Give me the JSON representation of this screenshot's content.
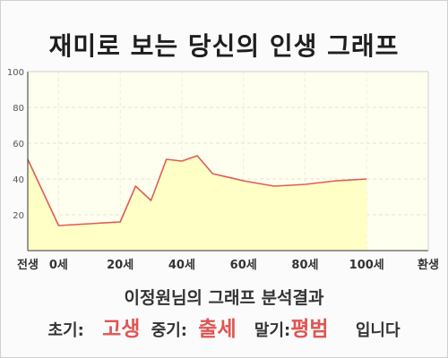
{
  "title": "재미로 보는 당신의 인생 그래프",
  "result_subtitle": "이정원님의 그래프 분석결과",
  "summary": {
    "early_label": "초기:",
    "early_value": "고생",
    "middle_label": "중기:",
    "middle_value": "출세",
    "late_label": "말기:",
    "late_value": "평범",
    "ending": "입니다"
  },
  "colors": {
    "line": "#e05a5a",
    "fill": "#ffffc6",
    "plot_background": "#fffff0",
    "highlight": "#e05552"
  },
  "chart_data": {
    "type": "area",
    "title": "재미로 보는 당신의 인생 그래프",
    "xlabel": "",
    "ylabel": "",
    "x": [
      -10,
      0,
      10,
      20,
      25,
      30,
      35,
      40,
      45,
      50,
      60,
      70,
      80,
      90,
      100
    ],
    "values": [
      51,
      14,
      15,
      16,
      36,
      28,
      51,
      50,
      53,
      43,
      39,
      36,
      37,
      39,
      40
    ],
    "ylim": [
      0,
      100
    ],
    "yticks": [
      20,
      40,
      60,
      80,
      100
    ],
    "xticks": [
      {
        "x": -10,
        "label": "전생"
      },
      {
        "x": 0,
        "label": "0세"
      },
      {
        "x": 20,
        "label": "20세"
      },
      {
        "x": 40,
        "label": "40세"
      },
      {
        "x": 60,
        "label": "60세"
      },
      {
        "x": 80,
        "label": "80세"
      },
      {
        "x": 100,
        "label": "100세"
      },
      {
        "x": 120,
        "label": "환생"
      }
    ],
    "xlim": [
      -10,
      120
    ],
    "grid": true,
    "legend": "none"
  }
}
